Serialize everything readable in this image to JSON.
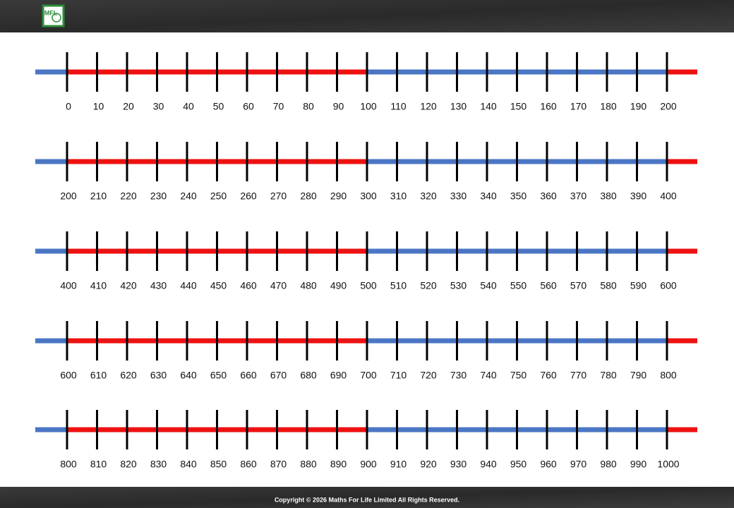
{
  "header": {
    "logo": "MFL"
  },
  "number_lines": [
    {
      "labels": [
        0,
        10,
        20,
        30,
        40,
        50,
        60,
        70,
        80,
        90,
        100,
        110,
        120,
        130,
        140,
        150,
        160,
        170,
        180,
        190,
        200
      ]
    },
    {
      "labels": [
        200,
        210,
        220,
        230,
        240,
        250,
        260,
        270,
        280,
        290,
        300,
        310,
        320,
        330,
        340,
        350,
        360,
        370,
        380,
        390,
        400
      ]
    },
    {
      "labels": [
        400,
        410,
        420,
        430,
        440,
        450,
        460,
        470,
        480,
        490,
        500,
        510,
        520,
        530,
        540,
        550,
        560,
        570,
        580,
        590,
        600
      ]
    },
    {
      "labels": [
        600,
        610,
        620,
        630,
        640,
        650,
        660,
        670,
        680,
        690,
        700,
        710,
        720,
        730,
        740,
        750,
        760,
        770,
        780,
        790,
        800
      ]
    },
    {
      "labels": [
        800,
        810,
        820,
        830,
        840,
        850,
        860,
        870,
        880,
        890,
        900,
        910,
        920,
        930,
        940,
        950,
        960,
        970,
        980,
        990,
        1000
      ]
    }
  ],
  "footer": {
    "copyright": "Copyright © 2026 Maths For Life Limited All Rights Reserved."
  }
}
